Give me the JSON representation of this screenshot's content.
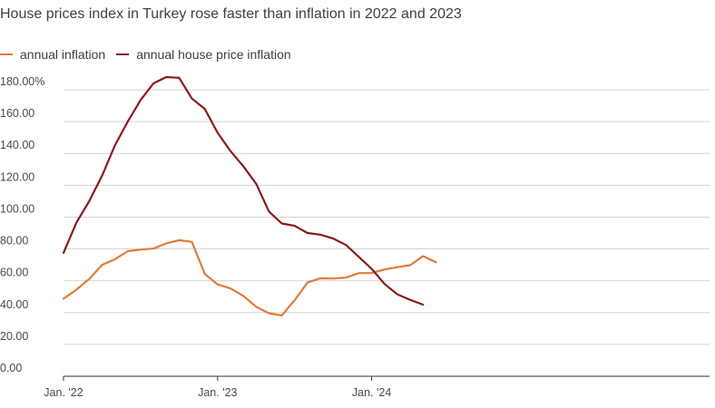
{
  "chart_data": {
    "type": "line",
    "title": "House prices index in Turkey rose faster than inflation in 2022 and 2023",
    "xlabel": "",
    "ylabel": "",
    "ylim": [
      0,
      180
    ],
    "grid": true,
    "legend_position": "top-left",
    "y_ticks": [
      "0.00",
      "20.00",
      "40.00",
      "60.00",
      "80.00",
      "100.00",
      "120.00",
      "140.00",
      "160.00",
      "180.00%"
    ],
    "x_ticks": [
      {
        "index": 0,
        "label": "Jan. '22"
      },
      {
        "index": 12,
        "label": "Jan. '23"
      },
      {
        "index": 24,
        "label": "Jan. '24"
      }
    ],
    "x": [
      "2022-01",
      "2022-02",
      "2022-03",
      "2022-04",
      "2022-05",
      "2022-06",
      "2022-07",
      "2022-08",
      "2022-09",
      "2022-10",
      "2022-11",
      "2022-12",
      "2023-01",
      "2023-02",
      "2023-03",
      "2023-04",
      "2023-05",
      "2023-06",
      "2023-07",
      "2023-08",
      "2023-09",
      "2023-10",
      "2023-11",
      "2023-12",
      "2024-01",
      "2024-02",
      "2024-03",
      "2024-04",
      "2024-05",
      "2024-06",
      "2024-07"
    ],
    "series": [
      {
        "name": "annual inflation",
        "color": "#e07b39",
        "values": [
          48.7,
          54.4,
          61.1,
          70.0,
          73.5,
          78.6,
          79.6,
          80.2,
          83.5,
          85.5,
          84.4,
          64.3,
          57.7,
          55.2,
          50.5,
          43.7,
          39.6,
          38.2,
          47.8,
          58.9,
          61.5,
          61.4,
          62.0,
          64.8,
          64.9,
          67.1,
          68.5,
          69.8,
          75.5,
          71.6,
          null
        ]
      },
      {
        "name": "annual house price inflation",
        "color": "#8b1a1a",
        "values": [
          77.5,
          96.5,
          110.0,
          126.0,
          145.0,
          160.0,
          173.5,
          184.0,
          188.0,
          187.5,
          174.5,
          168.0,
          153.0,
          141.5,
          132.0,
          121.0,
          103.5,
          96.0,
          94.5,
          90.0,
          89.0,
          86.5,
          82.5,
          75.0,
          67.5,
          58.0,
          51.5,
          48.0,
          45.0,
          null,
          null
        ]
      }
    ]
  }
}
